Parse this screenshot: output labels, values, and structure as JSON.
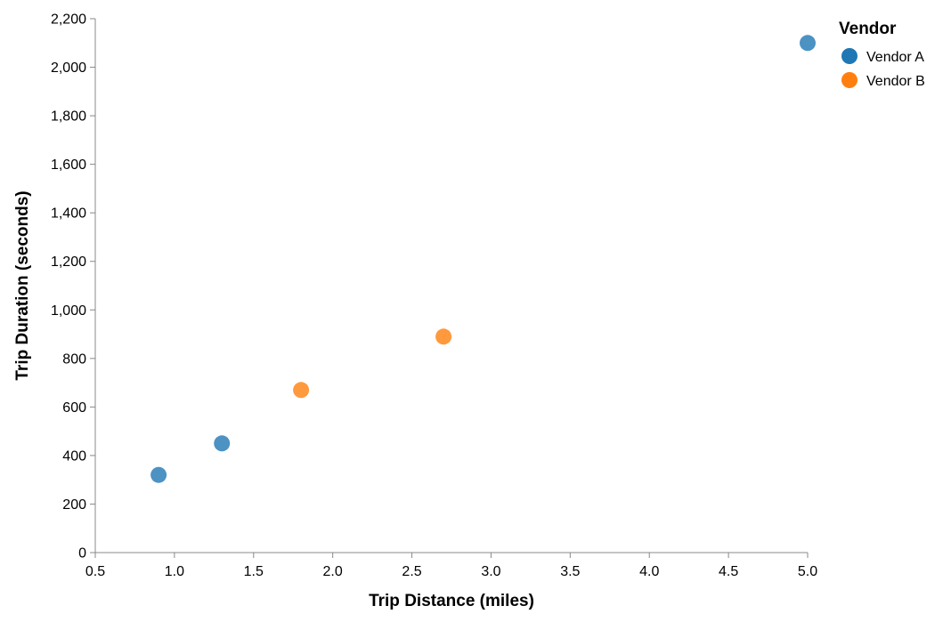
{
  "chart_data": {
    "type": "scatter",
    "xlabel": "Trip Distance (miles)",
    "ylabel": "Trip Duration (seconds)",
    "xlim": [
      0.5,
      5.0
    ],
    "ylim": [
      0,
      2200
    ],
    "x_ticks": [
      "0.5",
      "1.0",
      "1.5",
      "2.0",
      "2.5",
      "3.0",
      "3.5",
      "4.0",
      "4.5",
      "5.0"
    ],
    "y_ticks": [
      "0",
      "200",
      "400",
      "600",
      "800",
      "1,000",
      "1,200",
      "1,400",
      "1,600",
      "1,800",
      "2,000",
      "2,200"
    ],
    "grid": false,
    "legend": {
      "title": "Vendor",
      "placement": "top-right",
      "entries": [
        {
          "label": "Vendor A",
          "color": "#1f77b4"
        },
        {
          "label": "Vendor B",
          "color": "#ff7f0e"
        }
      ]
    },
    "series": [
      {
        "name": "Vendor A",
        "color": "#1f77b4",
        "points": [
          {
            "x": 0.9,
            "y": 320
          },
          {
            "x": 1.3,
            "y": 450
          },
          {
            "x": 5.0,
            "y": 2100
          }
        ]
      },
      {
        "name": "Vendor B",
        "color": "#ff7f0e",
        "points": [
          {
            "x": 1.8,
            "y": 670
          },
          {
            "x": 2.7,
            "y": 890
          }
        ]
      }
    ]
  }
}
